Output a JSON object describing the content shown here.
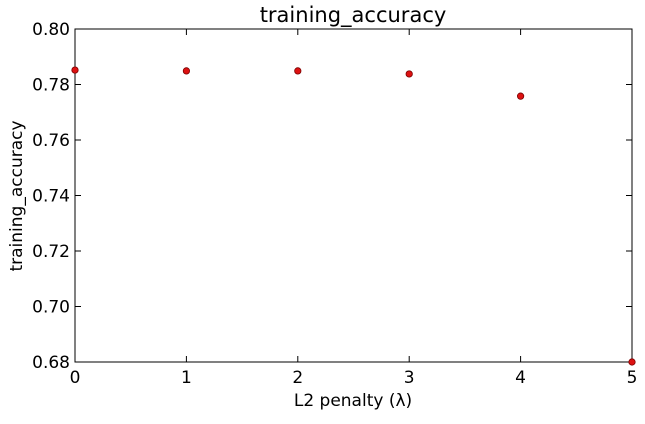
{
  "chart_data": {
    "type": "scatter",
    "title": "training_accuracy",
    "xlabel": "L2 penalty (λ)",
    "ylabel": "training_accuracy",
    "xlim": [
      0,
      5
    ],
    "ylim": [
      0.68,
      0.8
    ],
    "xticks": [
      0,
      1,
      2,
      3,
      4,
      5
    ],
    "xtick_labels": [
      "0",
      "1",
      "2",
      "3",
      "4",
      "5"
    ],
    "yticks": [
      0.68,
      0.7,
      0.72,
      0.74,
      0.76,
      0.78,
      0.8
    ],
    "ytick_labels": [
      "0.68",
      "0.70",
      "0.72",
      "0.74",
      "0.76",
      "0.78",
      "0.80"
    ],
    "grid": false,
    "legend": "none",
    "series": [
      {
        "x": [
          0,
          1,
          2,
          3,
          4,
          5
        ],
        "y": [
          0.7852,
          0.7849,
          0.7849,
          0.7838,
          0.7758,
          0.68
        ],
        "color": "#dd1111"
      }
    ]
  }
}
